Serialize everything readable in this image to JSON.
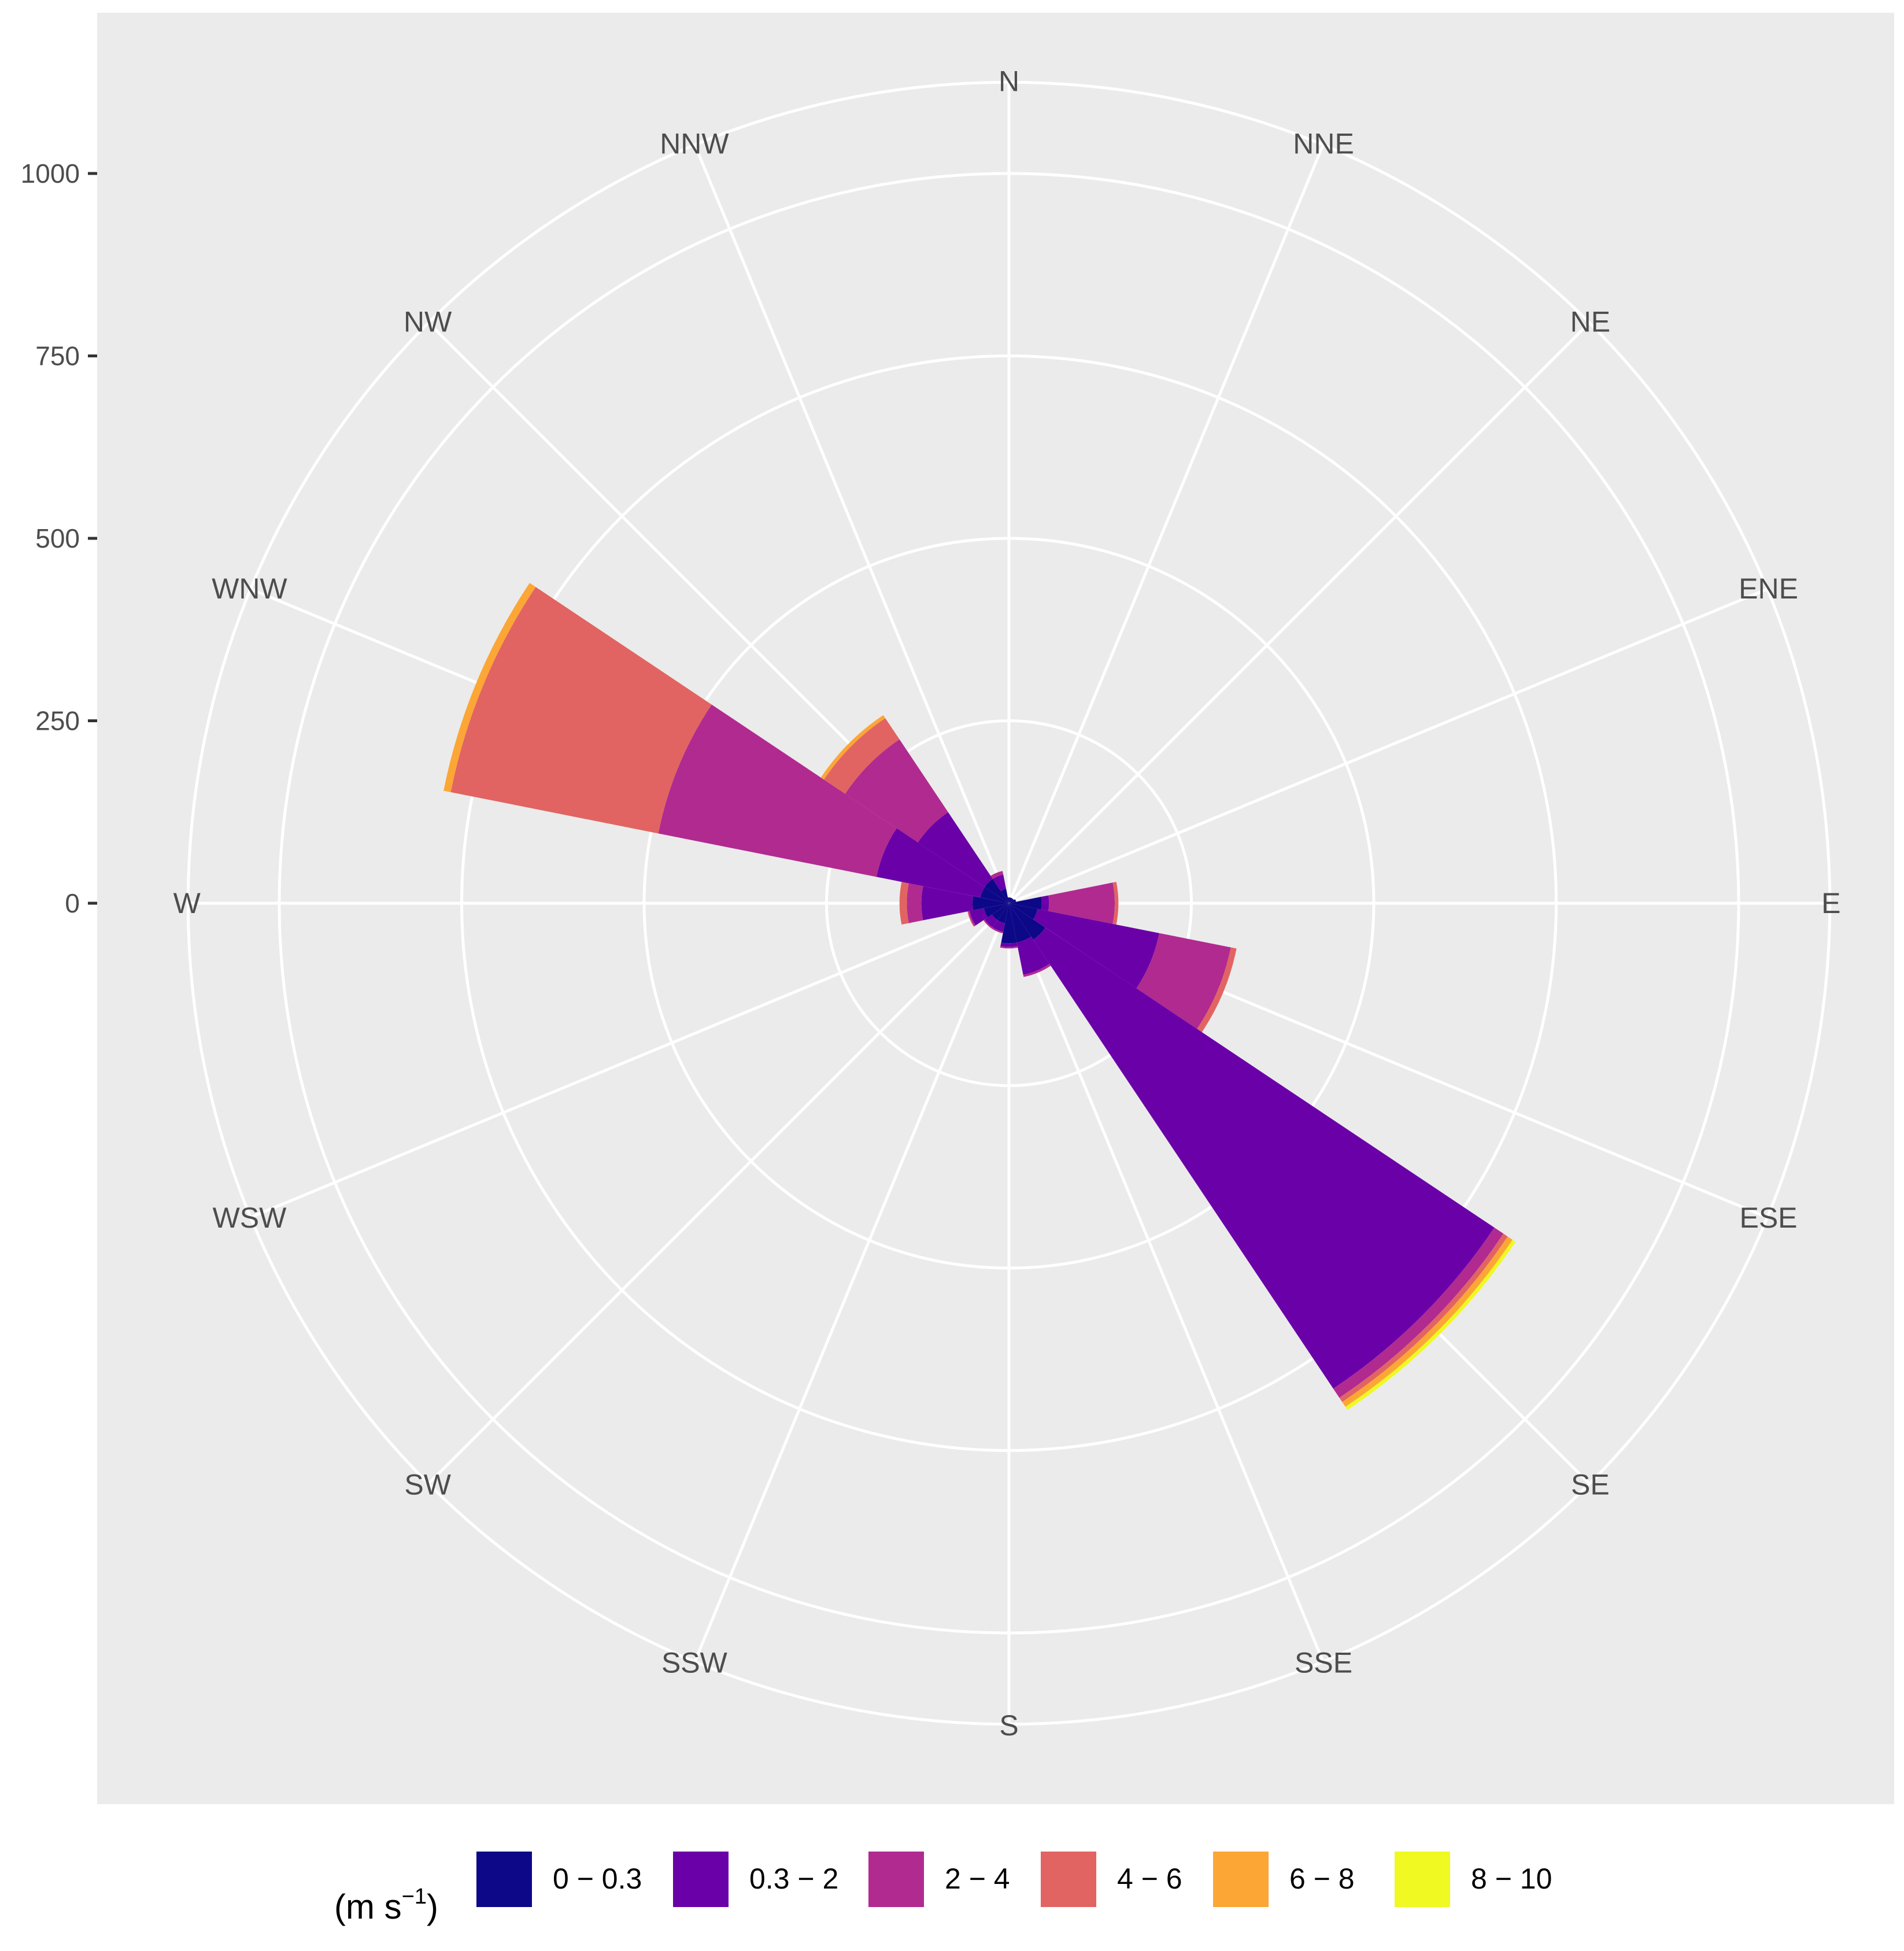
{
  "chart_data": {
    "type": "windrose",
    "title": "",
    "legend": {
      "title_text": "(m s",
      "title_sup": "−1",
      "title_end": ")",
      "position": "bottom",
      "entries": [
        {
          "label": "0 − 0.3",
          "color": "#0d0887"
        },
        {
          "label": "0.3 − 2",
          "color": "#6a00a8"
        },
        {
          "label": "2 − 4",
          "color": "#b12a90"
        },
        {
          "label": "4 − 6",
          "color": "#e16462"
        },
        {
          "label": "6 − 8",
          "color": "#fca636"
        },
        {
          "label": "8 − 10",
          "color": "#f0f921"
        }
      ]
    },
    "radial_axis": {
      "ticks": [
        0,
        250,
        500,
        750,
        1000
      ],
      "tick_labels": [
        "0",
        "250",
        "500",
        "750",
        "1000"
      ],
      "max": 1125,
      "grid_circles": [
        0,
        250,
        500,
        750,
        1000,
        1125
      ]
    },
    "directions": [
      "N",
      "NNE",
      "NE",
      "ENE",
      "E",
      "ESE",
      "SE",
      "SSE",
      "S",
      "SSW",
      "SW",
      "WSW",
      "W",
      "WNW",
      "NW",
      "NNW"
    ],
    "grid": true,
    "panel_background": "#ebebeb",
    "series_cumulative": [
      {
        "direction": "N",
        "stacks": [
          8,
          8,
          8,
          8,
          8,
          8
        ]
      },
      {
        "direction": "NNE",
        "stacks": [
          8,
          8,
          8,
          8,
          8,
          8
        ]
      },
      {
        "direction": "NE",
        "stacks": [
          8,
          8,
          8,
          8,
          8,
          8
        ]
      },
      {
        "direction": "ENE",
        "stacks": [
          10,
          10,
          10,
          10,
          10,
          10
        ]
      },
      {
        "direction": "E",
        "stacks": [
          45,
          55,
          145,
          150,
          150,
          150
        ]
      },
      {
        "direction": "ESE",
        "stacks": [
          40,
          210,
          310,
          318,
          318,
          318
        ]
      },
      {
        "direction": "SE",
        "stacks": [
          60,
          800,
          815,
          822,
          830,
          835
        ]
      },
      {
        "direction": "SSE",
        "stacks": [
          55,
          100,
          103,
          103,
          103,
          103
        ]
      },
      {
        "direction": "S",
        "stacks": [
          55,
          60,
          62,
          62,
          62,
          62
        ]
      },
      {
        "direction": "SSW",
        "stacks": [
          28,
          40,
          42,
          42,
          42,
          42
        ]
      },
      {
        "direction": "SW",
        "stacks": [
          28,
          40,
          42,
          42,
          42,
          42
        ]
      },
      {
        "direction": "WSW",
        "stacks": [
          35,
          55,
          57,
          58,
          58,
          58
        ]
      },
      {
        "direction": "W",
        "stacks": [
          50,
          120,
          140,
          150,
          150,
          150
        ]
      },
      {
        "direction": "WNW",
        "stacks": [
          40,
          185,
          490,
          780,
          790,
          790
        ]
      },
      {
        "direction": "NW",
        "stacks": [
          40,
          150,
          270,
          305,
          310,
          310
        ]
      },
      {
        "direction": "NNW",
        "stacks": [
          20,
          40,
          45,
          45,
          45,
          45
        ]
      }
    ]
  }
}
